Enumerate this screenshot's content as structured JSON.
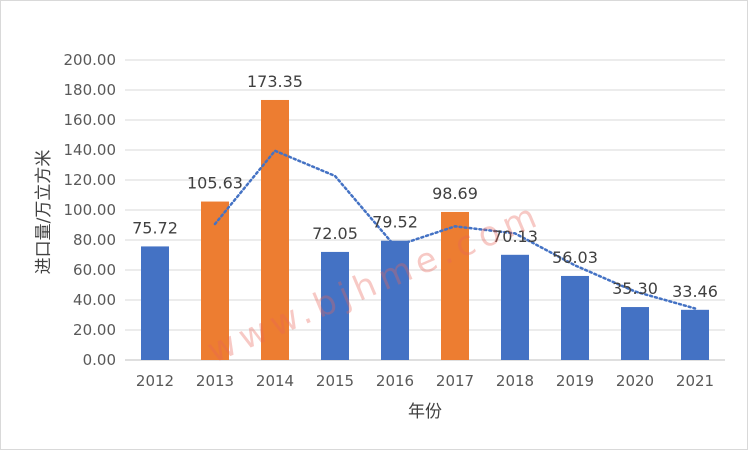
{
  "chart_data": {
    "type": "bar",
    "title": "",
    "xlabel": "年份",
    "ylabel": "进口量/万立方米",
    "ylim": [
      0,
      200
    ],
    "ytick_step": 20,
    "ytick_labels": [
      "0.00",
      "20.00",
      "40.00",
      "60.00",
      "80.00",
      "100.00",
      "120.00",
      "140.00",
      "160.00",
      "180.00",
      "200.00"
    ],
    "grid": true,
    "legend": "none",
    "categories": [
      "2012",
      "2013",
      "2014",
      "2015",
      "2016",
      "2017",
      "2018",
      "2019",
      "2020",
      "2021"
    ],
    "values": [
      75.72,
      105.63,
      173.35,
      72.05,
      79.52,
      98.69,
      70.13,
      56.03,
      35.3,
      33.46
    ],
    "value_labels": [
      "75.72",
      "105.63",
      "173.35",
      "72.05",
      "79.52",
      "98.69",
      "70.13",
      "56.03",
      "35.30",
      "33.46"
    ],
    "bar_colors": [
      "#4472c4",
      "#ed7d31",
      "#ed7d31",
      "#4472c4",
      "#4472c4",
      "#ed7d31",
      "#4472c4",
      "#4472c4",
      "#4472c4",
      "#4472c4"
    ],
    "trendline": {
      "type": "moving_average",
      "style": "dotted",
      "color": "#4472c4",
      "x": [
        "2013",
        "2014",
        "2015",
        "2016",
        "2017",
        "2018",
        "2019",
        "2020",
        "2021"
      ],
      "values": [
        90.68,
        139.49,
        122.7,
        75.79,
        89.11,
        84.41,
        63.08,
        45.67,
        34.38
      ]
    }
  },
  "watermark": "www.bjhme.com"
}
